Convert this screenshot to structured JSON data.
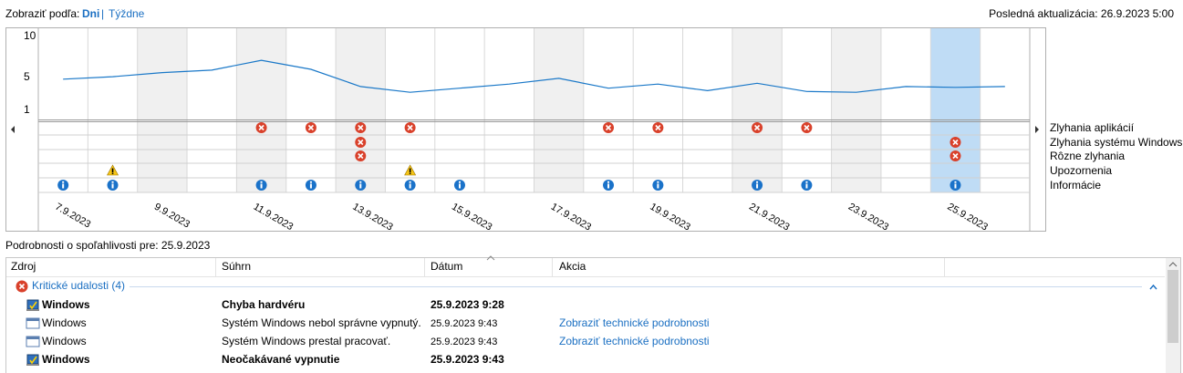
{
  "header": {
    "view_label": "Zobraziť podľa:",
    "view_days": "Dni",
    "view_separator": "|",
    "view_weeks": "Týždne",
    "last_update": "Posledná aktualizácia: 26.9.2023 5:00"
  },
  "chart_data": {
    "type": "line",
    "categories": [
      "7.9.2023",
      null,
      "9.9.2023",
      null,
      "11.9.2023",
      null,
      "13.9.2023",
      null,
      "15.9.2023",
      null,
      "17.9.2023",
      null,
      "19.9.2023",
      null,
      "21.9.2023",
      null,
      "23.9.2023",
      null,
      "25.9.2023",
      null
    ],
    "series": [
      {
        "color": "#1a78c8",
        "values": [
          4.8,
          5.1,
          5.6,
          5.9,
          7.1,
          6.0,
          3.9,
          3.2,
          3.7,
          4.2,
          4.9,
          3.7,
          4.2,
          3.4,
          4.3,
          3.3,
          3.2,
          3.9,
          3.8,
          3.9
        ]
      }
    ],
    "ylim": [
      1,
      10
    ],
    "yticks": [
      1,
      5,
      10
    ],
    "selected": 18,
    "shaded": [
      2,
      4,
      6,
      10,
      14,
      16
    ],
    "event_rows": [
      {
        "name": "Zlyhania aplikácií",
        "icon": "error",
        "values": [
          0,
          0,
          0,
          0,
          1,
          1,
          1,
          1,
          0,
          0,
          0,
          1,
          1,
          0,
          1,
          1,
          0,
          0,
          0,
          0
        ]
      },
      {
        "name": "Zlyhania systému Windows",
        "icon": "error",
        "values": [
          0,
          0,
          0,
          0,
          0,
          0,
          1,
          0,
          0,
          0,
          0,
          0,
          0,
          0,
          0,
          0,
          0,
          0,
          1,
          0
        ]
      },
      {
        "name": "Rôzne zlyhania",
        "icon": "error",
        "values": [
          0,
          0,
          0,
          0,
          0,
          0,
          1,
          0,
          0,
          0,
          0,
          0,
          0,
          0,
          0,
          0,
          0,
          0,
          1,
          0
        ]
      },
      {
        "name": "Upozornenia",
        "icon": "warning",
        "values": [
          0,
          1,
          0,
          0,
          0,
          0,
          0,
          1,
          0,
          0,
          0,
          0,
          0,
          0,
          0,
          0,
          0,
          0,
          0,
          0
        ]
      },
      {
        "name": "Informácie",
        "icon": "info",
        "values": [
          1,
          1,
          0,
          0,
          1,
          1,
          1,
          1,
          1,
          0,
          0,
          1,
          1,
          0,
          1,
          1,
          0,
          0,
          1,
          0
        ]
      }
    ]
  },
  "details": {
    "title": "Podrobnosti o spoľahlivosti pre: 25.9.2023",
    "columns": [
      "Zdroj",
      "Súhrn",
      "Dátum",
      "Akcia"
    ],
    "group": "Kritické udalosti (4)",
    "rows": [
      {
        "cells": [
          "Windows",
          "Chyba hardvéru",
          "25.9.2023 9:28",
          ""
        ],
        "bold": true
      },
      {
        "cells": [
          "Windows",
          "Systém Windows nebol správne vypnutý.",
          "25.9.2023 9:43",
          "Zobraziť technické podrobnosti"
        ],
        "bold": false
      },
      {
        "cells": [
          "Windows",
          "Systém Windows prestal pracovať.",
          "25.9.2023 9:43",
          "Zobraziť technické podrobnosti"
        ],
        "bold": false
      },
      {
        "cells": [
          "Windows",
          "Neočakávané vypnutie",
          "25.9.2023 9:43",
          ""
        ],
        "bold": true
      }
    ]
  }
}
